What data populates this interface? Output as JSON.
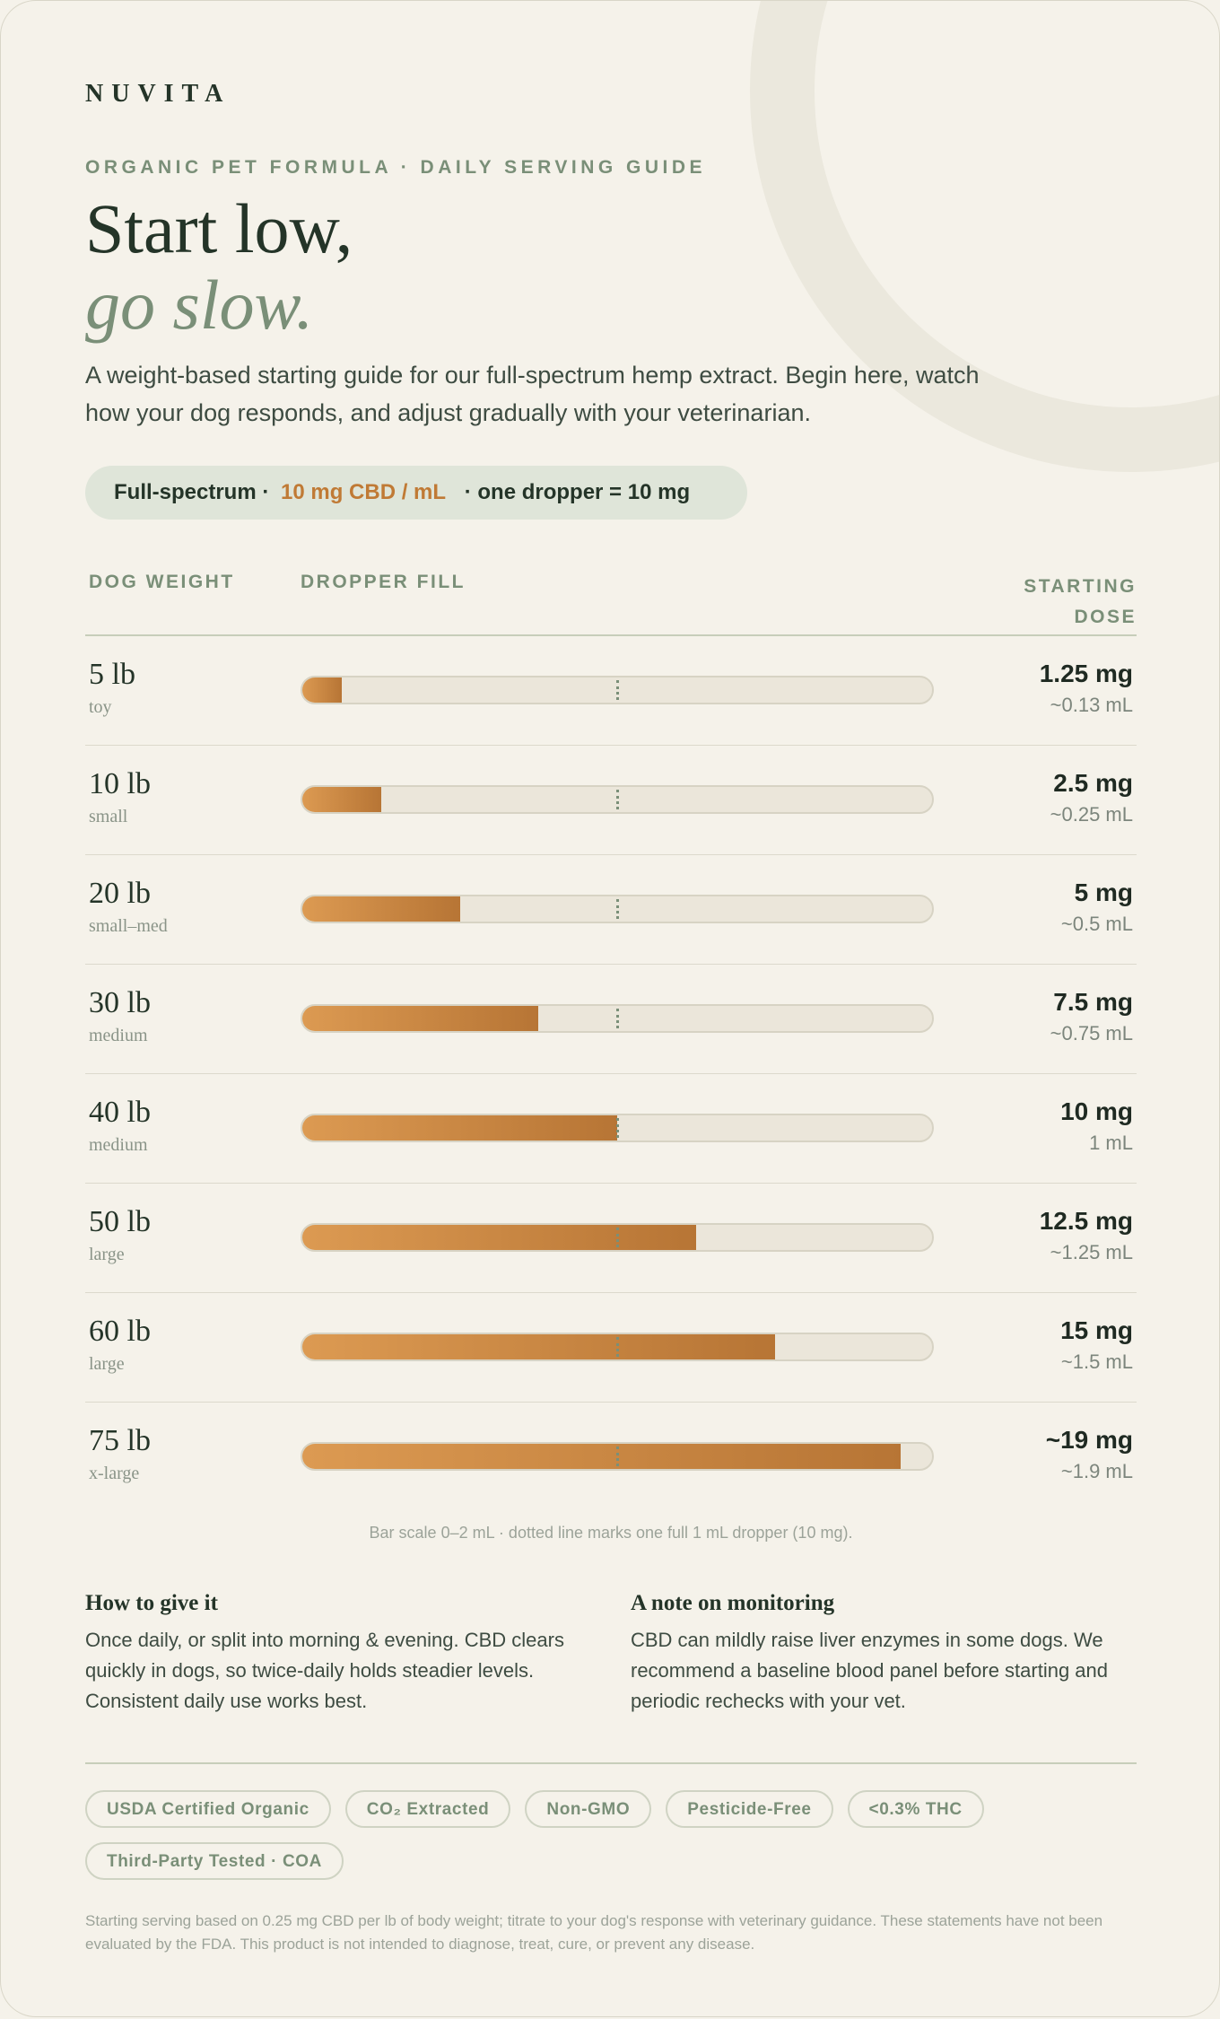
{
  "brand": "NUVITA",
  "eyebrow": "ORGANIC PET FORMULA · DAILY SERVING GUIDE",
  "headline_1": "Start low,",
  "headline_2": "go slow.",
  "lede": "A weight-based starting guide for our full-spectrum hemp extract. Begin here, watch how your dog responds, and adjust gradually with your veterinarian.",
  "spec": {
    "part1": "Full-spectrum ·",
    "accent": "10 mg CBD / mL",
    "part2": "· one dropper = 10 mg"
  },
  "colors": {
    "accent": "#c07a35",
    "sage": "#7a8f78",
    "ink": "#243428",
    "paper": "#f5f2ea"
  },
  "table": {
    "col_weight": "DOG WEIGHT",
    "col_fill": "DROPPER FILL",
    "col_dose_1": "STARTING",
    "col_dose_2": "DOSE",
    "scale_max_ml": 2,
    "marker_ml": 1,
    "rows": [
      {
        "weight": "5 lb",
        "size": "toy",
        "dose": "1.25 mg",
        "ml_text": "~0.13 mL",
        "ml": 0.125
      },
      {
        "weight": "10 lb",
        "size": "small",
        "dose": "2.5 mg",
        "ml_text": "~0.25 mL",
        "ml": 0.25
      },
      {
        "weight": "20 lb",
        "size": "small–med",
        "dose": "5 mg",
        "ml_text": "~0.5 mL",
        "ml": 0.5
      },
      {
        "weight": "30 lb",
        "size": "medium",
        "dose": "7.5 mg",
        "ml_text": "~0.75 mL",
        "ml": 0.75
      },
      {
        "weight": "40 lb",
        "size": "medium",
        "dose": "10 mg",
        "ml_text": "1 mL",
        "ml": 1.0
      },
      {
        "weight": "50 lb",
        "size": "large",
        "dose": "12.5 mg",
        "ml_text": "~1.25 mL",
        "ml": 1.25
      },
      {
        "weight": "60 lb",
        "size": "large",
        "dose": "15 mg",
        "ml_text": "~1.5 mL",
        "ml": 1.5
      },
      {
        "weight": "75 lb",
        "size": "x-large",
        "dose": "~19 mg",
        "ml_text": "~1.9 mL",
        "ml": 1.9
      }
    ]
  },
  "scale_note": "Bar scale 0–2 mL · dotted line marks one full 1 mL dropper (10 mg).",
  "how": {
    "title": "How to give it",
    "body": "Once daily, or split into morning & evening. CBD clears quickly in dogs, so twice-daily holds steadier levels. Consistent daily use works best."
  },
  "monitor": {
    "title": "A note on monitoring",
    "body": "CBD can mildly raise liver enzymes in some dogs. We recommend a baseline blood panel before starting and periodic rechecks with your vet."
  },
  "badges": [
    "USDA Certified Organic",
    "CO₂ Extracted",
    "Non-GMO",
    "Pesticide-Free",
    "<0.3% THC",
    "Third-Party Tested · COA"
  ],
  "disclaimer": "Starting serving based on 0.25 mg CBD per lb of body weight; titrate to your dog's response with veterinary guidance. These statements have not been evaluated by the FDA. This product is not intended to diagnose, treat, cure, or prevent any disease."
}
